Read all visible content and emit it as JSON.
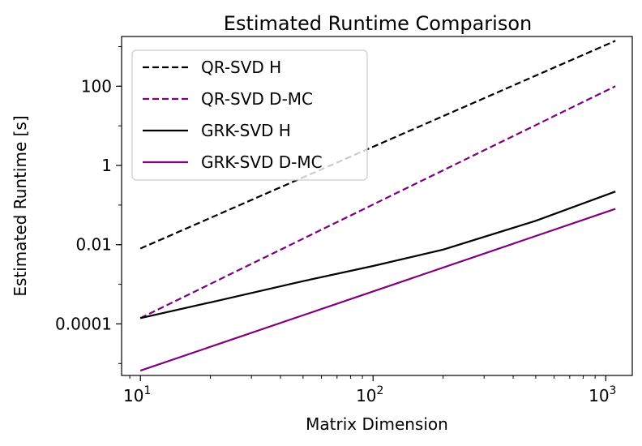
{
  "chart_data": {
    "type": "line",
    "title": "Estimated Runtime Comparison",
    "xlabel": "Matrix Dimension",
    "ylabel": "Estimated Runtime [s]",
    "xscale": "log",
    "yscale": "log",
    "xlim": [
      8.3,
      1300
    ],
    "ylim": [
      5e-06,
      1800
    ],
    "x_ticks": [
      {
        "value": 10,
        "base": "10",
        "exp": "1"
      },
      {
        "value": 100,
        "base": "10",
        "exp": "2"
      },
      {
        "value": 1000,
        "base": "10",
        "exp": "3"
      }
    ],
    "y_ticks": [
      {
        "value": 0.0001,
        "label": "0.0001"
      },
      {
        "value": 0.01,
        "label": "0.01"
      },
      {
        "value": 1,
        "label": "1"
      },
      {
        "value": 100,
        "label": "100"
      }
    ],
    "legend_position": "top-left",
    "series": [
      {
        "name": "QR-SVD H",
        "color": "#000000",
        "dash": "dashed",
        "x": [
          10,
          1100
        ],
        "y": [
          0.008,
          1400
        ]
      },
      {
        "name": "QR-SVD D-MC",
        "color": "#800080",
        "dash": "dashed",
        "x": [
          10,
          1100
        ],
        "y": [
          0.00014,
          100
        ]
      },
      {
        "name": "GRK-SVD H",
        "color": "#000000",
        "dash": "solid",
        "x": [
          10,
          20,
          50,
          100,
          200,
          500,
          1100
        ],
        "y": [
          0.00014,
          0.00035,
          0.0012,
          0.0029,
          0.0075,
          0.04,
          0.22
        ]
      },
      {
        "name": "GRK-SVD D-MC",
        "color": "#800080",
        "dash": "solid",
        "x": [
          10,
          1100
        ],
        "y": [
          6.6e-06,
          0.08
        ]
      }
    ]
  }
}
